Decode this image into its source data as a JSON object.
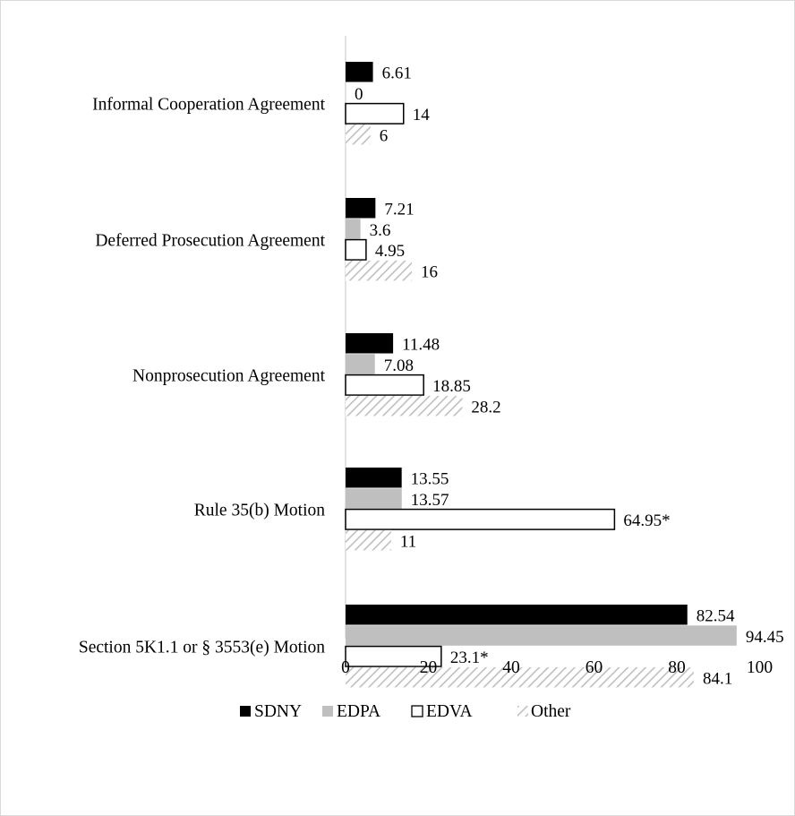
{
  "chart_data": {
    "type": "bar",
    "orientation": "horizontal",
    "categories": [
      "Informal Cooperation Agreement",
      "Deferred Prosecution Agreement",
      "Nonprosecution Agreement",
      "Rule 35(b) Motion",
      "Section 5K1.1 or § 3553(e) Motion"
    ],
    "series": [
      {
        "name": "SDNY",
        "style": "solid-black",
        "color": "#000000",
        "values": [
          6.61,
          7.21,
          11.48,
          13.55,
          82.54
        ],
        "labels": [
          "6.61",
          "7.21",
          "11.48",
          "13.55",
          "82.54"
        ]
      },
      {
        "name": "EDPA",
        "style": "solid-gray",
        "color": "#bfbfbf",
        "values": [
          0,
          3.6,
          7.08,
          13.57,
          94.45
        ],
        "labels": [
          "0",
          "3.6",
          "7.08",
          "13.57",
          "94.45"
        ]
      },
      {
        "name": "EDVA",
        "style": "outline",
        "color": "#000000",
        "values": [
          14,
          4.95,
          18.85,
          64.95,
          23.1
        ],
        "labels": [
          "14",
          "4.95",
          "18.85",
          "64.95*",
          "23.1*"
        ]
      },
      {
        "name": "Other",
        "style": "hatched-gray",
        "color": "#bfbfbf",
        "values": [
          6,
          16,
          28.2,
          11,
          84.1
        ],
        "labels": [
          "6",
          "16",
          "28.2",
          "11",
          "84.1"
        ]
      }
    ],
    "x_ticks": [
      "0",
      "20",
      "40",
      "60",
      "80",
      "100"
    ],
    "xlim": [
      0,
      100
    ],
    "grid": false,
    "legend_position": "bottom"
  },
  "colors": {
    "axis": "#d9d9d9",
    "border": "#d9d9d9",
    "gray": "#bfbfbf",
    "black": "#000000"
  }
}
